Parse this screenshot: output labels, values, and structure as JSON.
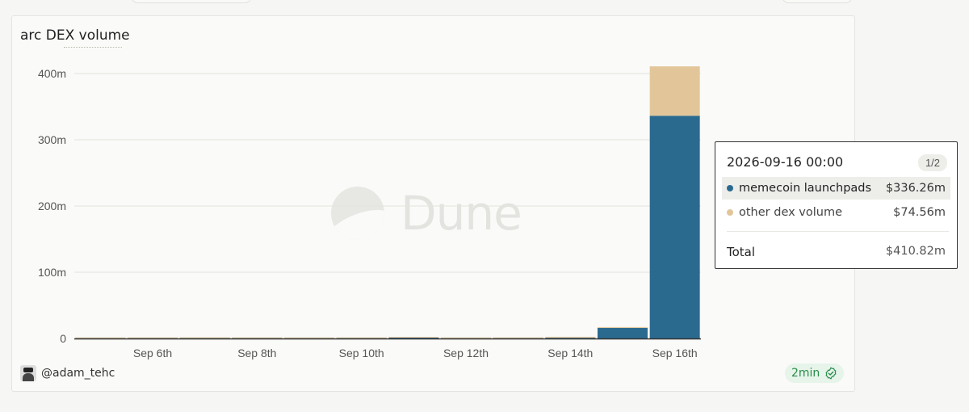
{
  "chart_data": {
    "type": "bar",
    "stacked": true,
    "title": "arc DEX volume",
    "categories": [
      "Sep 5th",
      "Sep 6th",
      "Sep 7th",
      "Sep 8th",
      "Sep 9th",
      "Sep 10th",
      "Sep 11th",
      "Sep 12th",
      "Sep 13th",
      "Sep 14th",
      "Sep 15th",
      "Sep 16th"
    ],
    "x_tick_labels": [
      "Sep 6th",
      "Sep 8th",
      "Sep 10th",
      "Sep 12th",
      "Sep 14th",
      "Sep 16th"
    ],
    "series": [
      {
        "name": "memecoin launchpads",
        "color": "#2b6a8f",
        "values": [
          0.3,
          0.4,
          0.5,
          0.4,
          0.3,
          0.4,
          1.2,
          0.3,
          0.4,
          1.0,
          16.0,
          336.26
        ]
      },
      {
        "name": "other dex volume",
        "color": "#e2c69a",
        "values": [
          0.1,
          0.1,
          0.2,
          0.1,
          0.1,
          0.1,
          0.3,
          0.1,
          0.1,
          1.5,
          1.0,
          74.56
        ]
      }
    ],
    "y_ticks": [
      "0",
      "100m",
      "200m",
      "300m",
      "400m"
    ],
    "ylim": [
      0,
      420
    ],
    "grid": true
  },
  "tooltip": {
    "date": "2026-09-16 00:00",
    "page": "1/2",
    "rows": [
      {
        "name": "memecoin launchpads",
        "value": "$336.26m",
        "color": "#2b6a8f"
      },
      {
        "name": "other dex volume",
        "value": "$74.56m",
        "color": "#e2c69a"
      }
    ],
    "total_label": "Total",
    "total_value": "$410.82m"
  },
  "watermark": "Dune",
  "author": "@adam_tehc",
  "freshness": "2min"
}
